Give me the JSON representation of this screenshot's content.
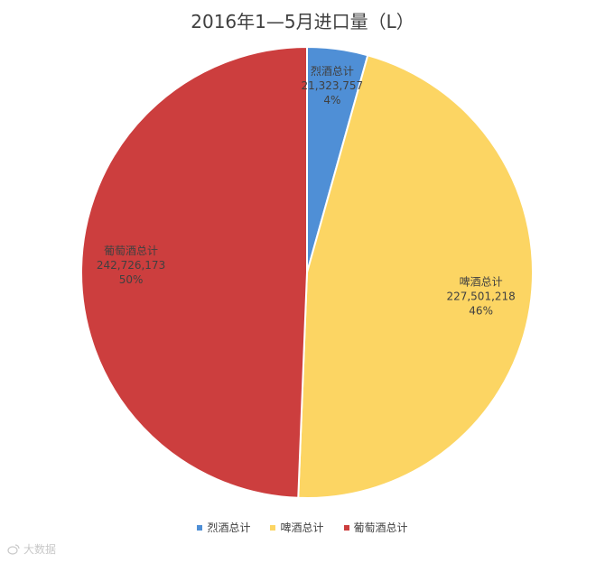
{
  "chart_data": {
    "type": "pie",
    "title": "2016年1—5月进口量（L）",
    "slices": [
      {
        "name": "烈酒总计",
        "value": 21323757,
        "value_label": "21,323,757",
        "percent_label": "4%",
        "color": "#4f8fd6"
      },
      {
        "name": "啤酒总计",
        "value": 227501218,
        "value_label": "227,501,218",
        "percent_label": "46%",
        "color": "#fcd563"
      },
      {
        "name": "葡萄酒总计",
        "value": 242726173,
        "value_label": "242,726,173",
        "percent_label": "50%",
        "color": "#cc3e3e"
      }
    ],
    "legend": {
      "placement": "bottom",
      "entries": [
        "烈酒总计",
        "啤酒总计",
        "葡萄酒总计"
      ]
    }
  },
  "watermark": {
    "text": "大数据"
  }
}
